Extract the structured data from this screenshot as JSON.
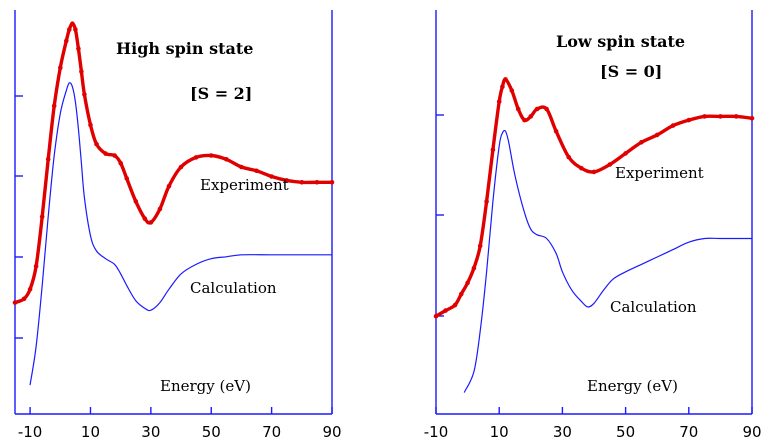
{
  "chart_data": [
    {
      "type": "line",
      "title": "High spin state",
      "subtitle": "[S = 2]",
      "xlabel": "Energy (eV)",
      "ylabel": "",
      "xticks": [
        "-10",
        "10",
        "30",
        "50",
        "70",
        "90"
      ],
      "xlim": [
        -15,
        90
      ],
      "ylim": [
        0,
        1
      ],
      "grid": false,
      "series": [
        {
          "name": "Experiment",
          "color": "#e00000",
          "marker": "dots",
          "x": [
            -15,
            -12,
            -10,
            -8,
            -6,
            -4,
            -2,
            0,
            2,
            3,
            4,
            5,
            6,
            7,
            8,
            10,
            12,
            15,
            18,
            20,
            22,
            25,
            28,
            30,
            33,
            36,
            40,
            45,
            50,
            55,
            60,
            65,
            70,
            75,
            80,
            85,
            90
          ],
          "y": [
            0.255,
            0.265,
            0.29,
            0.35,
            0.48,
            0.63,
            0.77,
            0.87,
            0.94,
            0.97,
            0.985,
            0.97,
            0.92,
            0.86,
            0.8,
            0.72,
            0.67,
            0.645,
            0.64,
            0.62,
            0.58,
            0.52,
            0.475,
            0.465,
            0.5,
            0.56,
            0.61,
            0.635,
            0.64,
            0.63,
            0.61,
            0.6,
            0.585,
            0.575,
            0.57,
            0.57,
            0.57
          ]
        },
        {
          "name": "Calculation",
          "color": "#1a1aff",
          "marker": "none",
          "x": [
            -10,
            -8,
            -6,
            -4,
            -2,
            0,
            2,
            3,
            4,
            5,
            6,
            7,
            8,
            10,
            12,
            15,
            18,
            20,
            22,
            25,
            28,
            30,
            33,
            36,
            40,
            45,
            50,
            55,
            60,
            70,
            80,
            90
          ],
          "y": [
            0.04,
            0.14,
            0.3,
            0.48,
            0.64,
            0.75,
            0.81,
            0.83,
            0.82,
            0.78,
            0.71,
            0.62,
            0.53,
            0.43,
            0.39,
            0.37,
            0.355,
            0.33,
            0.3,
            0.26,
            0.24,
            0.235,
            0.255,
            0.29,
            0.33,
            0.355,
            0.37,
            0.375,
            0.38,
            0.38,
            0.38,
            0.38
          ]
        }
      ]
    },
    {
      "type": "line",
      "title": "Low spin state",
      "subtitle": "[S = 0]",
      "xlabel": "Energy (eV)",
      "ylabel": "",
      "xticks": [
        "-10",
        "10",
        "30",
        "50",
        "70",
        "90"
      ],
      "xlim": [
        -10,
        90
      ],
      "ylim": [
        0,
        1
      ],
      "grid": false,
      "series": [
        {
          "name": "Experiment",
          "color": "#e00000",
          "marker": "dots",
          "x": [
            -10,
            -7,
            -4,
            -2,
            0,
            2,
            4,
            6,
            8,
            10,
            11,
            12,
            14,
            16,
            18,
            20,
            22,
            25,
            28,
            32,
            36,
            40,
            45,
            50,
            55,
            60,
            65,
            70,
            75,
            80,
            85,
            90
          ],
          "y": [
            0.24,
            0.255,
            0.27,
            0.3,
            0.33,
            0.37,
            0.43,
            0.55,
            0.69,
            0.82,
            0.86,
            0.88,
            0.85,
            0.8,
            0.77,
            0.78,
            0.8,
            0.8,
            0.74,
            0.67,
            0.64,
            0.63,
            0.65,
            0.68,
            0.71,
            0.73,
            0.755,
            0.77,
            0.78,
            0.78,
            0.78,
            0.775
          ]
        },
        {
          "name": "Calculation",
          "color": "#1a1aff",
          "marker": "none",
          "x": [
            -1,
            2,
            4,
            6,
            8,
            10,
            11,
            12,
            13,
            15,
            18,
            20,
            22,
            25,
            28,
            30,
            33,
            36,
            38,
            40,
            43,
            46,
            50,
            55,
            60,
            65,
            70,
            75,
            80,
            90
          ],
          "y": [
            0.035,
            0.09,
            0.2,
            0.36,
            0.55,
            0.7,
            0.735,
            0.74,
            0.71,
            0.62,
            0.52,
            0.475,
            0.46,
            0.45,
            0.41,
            0.36,
            0.31,
            0.28,
            0.265,
            0.275,
            0.31,
            0.34,
            0.36,
            0.38,
            0.4,
            0.42,
            0.44,
            0.45,
            0.45,
            0.45
          ]
        }
      ]
    }
  ]
}
